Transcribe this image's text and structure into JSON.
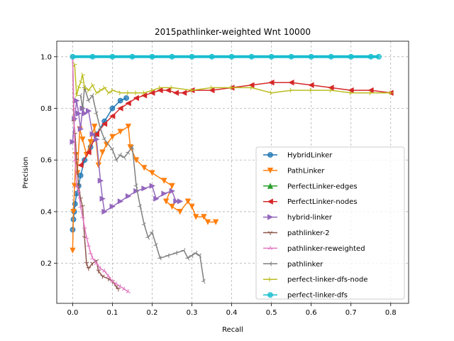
{
  "chart_data": {
    "type": "line",
    "title": "2015pathlinker-weighted Wnt 10000",
    "xlabel": "Recall",
    "ylabel": "Precision",
    "xlim": [
      -0.04,
      0.845
    ],
    "ylim": [
      0.045,
      1.06
    ],
    "xticks": [
      0.0,
      0.1,
      0.2,
      0.3,
      0.4,
      0.5,
      0.6,
      0.7,
      0.8
    ],
    "xtick_labels": [
      "0.0",
      "0.1",
      "0.2",
      "0.3",
      "0.4",
      "0.5",
      "0.6",
      "0.7",
      "0.8"
    ],
    "yticks": [
      0.2,
      0.4,
      0.6,
      0.8,
      1.0
    ],
    "ytick_labels": [
      "0.2",
      "0.4",
      "0.6",
      "0.8",
      "1.0"
    ],
    "grid": true,
    "legend_position": "lower-right",
    "series": [
      {
        "name": "HybridLinker",
        "color": "#1f77b4",
        "marker": "circle",
        "points": [
          [
            0.0,
            0.33
          ],
          [
            0.002,
            0.37
          ],
          [
            0.004,
            0.4
          ],
          [
            0.006,
            0.43
          ],
          [
            0.01,
            0.47
          ],
          [
            0.015,
            0.5
          ],
          [
            0.02,
            0.54
          ],
          [
            0.03,
            0.6
          ],
          [
            0.045,
            0.65
          ],
          [
            0.06,
            0.7
          ],
          [
            0.08,
            0.75
          ],
          [
            0.1,
            0.8
          ],
          [
            0.12,
            0.83
          ],
          [
            0.135,
            0.84
          ]
        ]
      },
      {
        "name": "PathLinker",
        "color": "#ff7f0e",
        "marker": "triangle-down",
        "points": [
          [
            0.0,
            0.25
          ],
          [
            0.002,
            0.4
          ],
          [
            0.005,
            0.5
          ],
          [
            0.008,
            0.62
          ],
          [
            0.012,
            0.55
          ],
          [
            0.018,
            0.72
          ],
          [
            0.025,
            0.68
          ],
          [
            0.035,
            0.62
          ],
          [
            0.045,
            0.67
          ],
          [
            0.055,
            0.73
          ],
          [
            0.065,
            0.58
          ],
          [
            0.075,
            0.63
          ],
          [
            0.085,
            0.66
          ],
          [
            0.1,
            0.69
          ],
          [
            0.12,
            0.71
          ],
          [
            0.14,
            0.73
          ],
          [
            0.145,
            0.65
          ],
          [
            0.16,
            0.6
          ],
          [
            0.18,
            0.57
          ],
          [
            0.2,
            0.55
          ],
          [
            0.23,
            0.52
          ],
          [
            0.25,
            0.5
          ],
          [
            0.235,
            0.44
          ],
          [
            0.25,
            0.42
          ],
          [
            0.27,
            0.4
          ],
          [
            0.29,
            0.44
          ],
          [
            0.3,
            0.42
          ],
          [
            0.31,
            0.38
          ],
          [
            0.33,
            0.38
          ],
          [
            0.34,
            0.36
          ],
          [
            0.36,
            0.36
          ]
        ]
      },
      {
        "name": "PerfectLinker-edges",
        "color": "#2ca02c",
        "marker": "triangle-up",
        "points": []
      },
      {
        "name": "PerfectLinker-nodes",
        "color": "#d62728",
        "marker": "triangle-left",
        "points": [
          [
            0.02,
            0.58
          ],
          [
            0.04,
            0.63
          ],
          [
            0.06,
            0.7
          ],
          [
            0.08,
            0.74
          ],
          [
            0.1,
            0.77
          ],
          [
            0.12,
            0.8
          ],
          [
            0.14,
            0.82
          ],
          [
            0.16,
            0.84
          ],
          [
            0.18,
            0.85
          ],
          [
            0.2,
            0.86
          ],
          [
            0.22,
            0.87
          ],
          [
            0.24,
            0.87
          ],
          [
            0.26,
            0.86
          ],
          [
            0.28,
            0.86
          ],
          [
            0.3,
            0.87
          ],
          [
            0.35,
            0.87
          ],
          [
            0.4,
            0.88
          ],
          [
            0.45,
            0.89
          ],
          [
            0.5,
            0.9
          ],
          [
            0.55,
            0.9
          ],
          [
            0.6,
            0.89
          ],
          [
            0.65,
            0.88
          ],
          [
            0.7,
            0.87
          ],
          [
            0.75,
            0.87
          ],
          [
            0.8,
            0.86
          ]
        ]
      },
      {
        "name": "hybrid-linker",
        "color": "#9467bd",
        "marker": "triangle-right",
        "points": [
          [
            0.0,
            0.67
          ],
          [
            0.005,
            0.76
          ],
          [
            0.01,
            0.83
          ],
          [
            0.015,
            0.78
          ],
          [
            0.02,
            0.72
          ],
          [
            0.025,
            0.8
          ],
          [
            0.03,
            0.78
          ],
          [
            0.04,
            0.79
          ],
          [
            0.05,
            0.7
          ],
          [
            0.06,
            0.68
          ],
          [
            0.07,
            0.52
          ],
          [
            0.075,
            0.45
          ],
          [
            0.08,
            0.4
          ],
          [
            0.1,
            0.42
          ],
          [
            0.12,
            0.44
          ],
          [
            0.14,
            0.46
          ],
          [
            0.16,
            0.48
          ],
          [
            0.18,
            0.49
          ],
          [
            0.2,
            0.5
          ],
          [
            0.21,
            0.45
          ],
          [
            0.23,
            0.47
          ],
          [
            0.25,
            0.48
          ],
          [
            0.26,
            0.44
          ],
          [
            0.27,
            0.44
          ]
        ]
      },
      {
        "name": "pathlinker-2",
        "color": "#8c564b",
        "marker": "tri-down",
        "points": [
          [
            0.0,
            1.0
          ],
          [
            0.003,
            0.75
          ],
          [
            0.006,
            0.7
          ],
          [
            0.01,
            0.6
          ],
          [
            0.015,
            0.5
          ],
          [
            0.02,
            0.45
          ],
          [
            0.025,
            0.42
          ],
          [
            0.03,
            0.3
          ],
          [
            0.035,
            0.2
          ],
          [
            0.04,
            0.18
          ],
          [
            0.05,
            0.2
          ],
          [
            0.06,
            0.21
          ],
          [
            0.065,
            0.17
          ],
          [
            0.075,
            0.15
          ],
          [
            0.09,
            0.14
          ],
          [
            0.1,
            0.13
          ],
          [
            0.11,
            0.11
          ],
          [
            0.115,
            0.1
          ]
        ]
      },
      {
        "name": "pathlinker-reweighted",
        "color": "#e377c2",
        "marker": "tri-up",
        "points": [
          [
            0.0,
            1.0
          ],
          [
            0.003,
            0.8
          ],
          [
            0.006,
            0.6
          ],
          [
            0.01,
            0.5
          ],
          [
            0.015,
            0.48
          ],
          [
            0.02,
            0.42
          ],
          [
            0.025,
            0.38
          ],
          [
            0.03,
            0.34
          ],
          [
            0.035,
            0.3
          ],
          [
            0.04,
            0.27
          ],
          [
            0.045,
            0.24
          ],
          [
            0.05,
            0.22
          ],
          [
            0.06,
            0.2
          ],
          [
            0.07,
            0.18
          ],
          [
            0.08,
            0.17
          ],
          [
            0.09,
            0.15
          ],
          [
            0.1,
            0.13
          ],
          [
            0.11,
            0.12
          ],
          [
            0.12,
            0.11
          ],
          [
            0.13,
            0.1
          ],
          [
            0.14,
            0.09
          ]
        ]
      },
      {
        "name": "pathlinker",
        "color": "#7f7f7f",
        "marker": "tri-left",
        "points": [
          [
            0.02,
            0.85
          ],
          [
            0.025,
            0.8
          ],
          [
            0.03,
            0.88
          ],
          [
            0.04,
            0.83
          ],
          [
            0.05,
            0.85
          ],
          [
            0.06,
            0.78
          ],
          [
            0.07,
            0.72
          ],
          [
            0.08,
            0.68
          ],
          [
            0.1,
            0.64
          ],
          [
            0.11,
            0.6
          ],
          [
            0.12,
            0.62
          ],
          [
            0.13,
            0.61
          ],
          [
            0.14,
            0.63
          ],
          [
            0.15,
            0.65
          ],
          [
            0.16,
            0.5
          ],
          [
            0.17,
            0.42
          ],
          [
            0.18,
            0.35
          ],
          [
            0.19,
            0.3
          ],
          [
            0.2,
            0.32
          ],
          [
            0.21,
            0.27
          ],
          [
            0.22,
            0.22
          ],
          [
            0.24,
            0.23
          ],
          [
            0.26,
            0.24
          ],
          [
            0.28,
            0.25
          ],
          [
            0.29,
            0.22
          ],
          [
            0.3,
            0.23
          ],
          [
            0.31,
            0.24
          ],
          [
            0.32,
            0.23
          ],
          [
            0.33,
            0.13
          ]
        ]
      },
      {
        "name": "perfect-linker-dfs-node",
        "color": "#bcbd22",
        "marker": "tri-right",
        "points": [
          [
            0.005,
            0.97
          ],
          [
            0.01,
            0.85
          ],
          [
            0.015,
            0.88
          ],
          [
            0.02,
            0.9
          ],
          [
            0.025,
            0.93
          ],
          [
            0.03,
            0.88
          ],
          [
            0.04,
            0.87
          ],
          [
            0.05,
            0.89
          ],
          [
            0.06,
            0.86
          ],
          [
            0.07,
            0.87
          ],
          [
            0.08,
            0.88
          ],
          [
            0.09,
            0.86
          ],
          [
            0.1,
            0.87
          ],
          [
            0.12,
            0.86
          ],
          [
            0.14,
            0.86
          ],
          [
            0.16,
            0.86
          ],
          [
            0.18,
            0.86
          ],
          [
            0.2,
            0.87
          ],
          [
            0.22,
            0.88
          ],
          [
            0.25,
            0.88
          ],
          [
            0.3,
            0.87
          ],
          [
            0.35,
            0.88
          ],
          [
            0.4,
            0.88
          ],
          [
            0.45,
            0.88
          ],
          [
            0.5,
            0.86
          ],
          [
            0.55,
            0.87
          ],
          [
            0.6,
            0.87
          ],
          [
            0.65,
            0.87
          ],
          [
            0.7,
            0.86
          ],
          [
            0.75,
            0.86
          ],
          [
            0.8,
            0.86
          ]
        ]
      },
      {
        "name": "perfect-linker-dfs",
        "color": "#17becf",
        "marker": "circle",
        "points": [
          [
            0.0,
            1.0
          ],
          [
            0.05,
            1.0
          ],
          [
            0.1,
            1.0
          ],
          [
            0.15,
            1.0
          ],
          [
            0.2,
            1.0
          ],
          [
            0.25,
            1.0
          ],
          [
            0.3,
            1.0
          ],
          [
            0.35,
            1.0
          ],
          [
            0.4,
            1.0
          ],
          [
            0.45,
            1.0
          ],
          [
            0.5,
            1.0
          ],
          [
            0.55,
            1.0
          ],
          [
            0.6,
            1.0
          ],
          [
            0.65,
            1.0
          ],
          [
            0.7,
            1.0
          ],
          [
            0.75,
            1.0
          ],
          [
            0.77,
            1.0
          ]
        ]
      }
    ]
  }
}
